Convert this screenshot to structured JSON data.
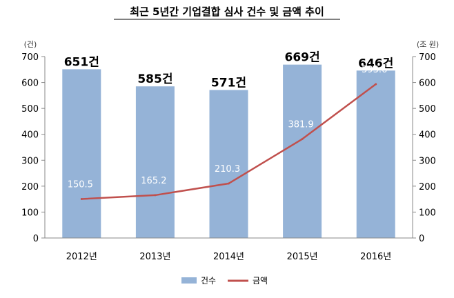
{
  "chart_data": {
    "type": "bar",
    "title": "최근 5년간 기업결합 심사 건수 및 금액 추이",
    "categories": [
      "2012년",
      "2013년",
      "2014년",
      "2015년",
      "2016년"
    ],
    "ylabel_left": "(건)",
    "ylabel_right": "(조 원)",
    "ylim_left": [
      0,
      700
    ],
    "ylim_right": [
      0,
      700
    ],
    "yticks_left": [
      "0",
      "100",
      "200",
      "300",
      "400",
      "500",
      "600",
      "700"
    ],
    "yticks_right": [
      "0",
      "100",
      "200",
      "300",
      "400",
      "500",
      "600",
      "700"
    ],
    "series": [
      {
        "name": "건수",
        "type": "bar",
        "axis": "left",
        "values": [
          651,
          585,
          571,
          669,
          646
        ],
        "labels": [
          "651건",
          "585건",
          "571건",
          "669건",
          "646건"
        ],
        "color": "#95B3D7"
      },
      {
        "name": "금액",
        "type": "line",
        "axis": "right",
        "values": [
          150.5,
          165.2,
          210.3,
          381.9,
          593.6
        ],
        "labels": [
          "150.5",
          "165.2",
          "210.3",
          "381.9",
          "593.6"
        ],
        "color": "#C0504D"
      }
    ],
    "legend_position": "bottom-center",
    "grid": false
  }
}
